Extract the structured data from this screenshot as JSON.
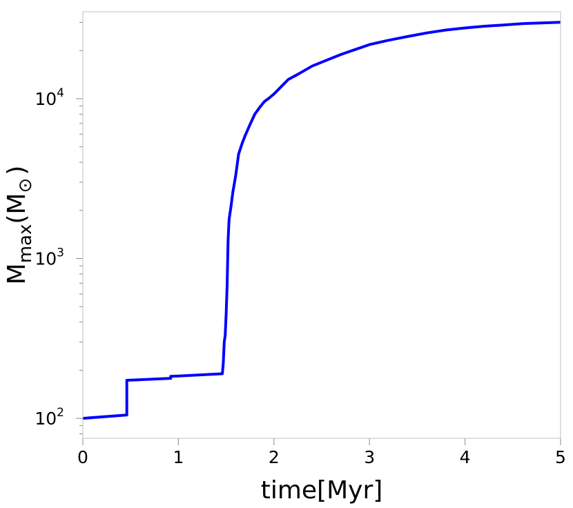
{
  "chart_data": {
    "type": "line",
    "title": "",
    "xlabel": "time[Myr]",
    "ylabel": {
      "main": "M",
      "sub": "max",
      "open": "(M",
      "sun_sub": "⊙",
      "close": ")"
    },
    "xlim": [
      0,
      5
    ],
    "ylim": [
      75,
      35000
    ],
    "yscale": "log",
    "grid": false,
    "legend": "none",
    "x_ticks": [
      {
        "value": 0,
        "label": "0"
      },
      {
        "value": 1,
        "label": "1"
      },
      {
        "value": 2,
        "label": "2"
      },
      {
        "value": 3,
        "label": "3"
      },
      {
        "value": 4,
        "label": "4"
      },
      {
        "value": 5,
        "label": "5"
      }
    ],
    "y_ticks": [
      {
        "value": 100,
        "base": "10",
        "exp": "2"
      },
      {
        "value": 1000,
        "base": "10",
        "exp": "3"
      },
      {
        "value": 10000,
        "base": "10",
        "exp": "4"
      }
    ],
    "series": [
      {
        "color": "#0000ff",
        "x": [
          0,
          0.46,
          0.46,
          0.92,
          0.92,
          1.46,
          1.47,
          1.48,
          1.49,
          1.5,
          1.51,
          1.52,
          1.53,
          1.55,
          1.57,
          1.6,
          1.63,
          1.67,
          1.7,
          1.75,
          1.8,
          1.85,
          1.9,
          1.95,
          2.0,
          2.1,
          2.15,
          2.25,
          2.4,
          2.55,
          2.7,
          2.85,
          3.0,
          3.2,
          3.4,
          3.6,
          3.8,
          4.0,
          4.2,
          4.4,
          4.6,
          4.8,
          5.0
        ],
        "y": [
          100,
          105,
          173,
          178,
          183,
          190,
          220,
          300,
          330,
          450,
          680,
          1300,
          1750,
          2100,
          2600,
          3300,
          4500,
          5300,
          5900,
          6900,
          8000,
          8800,
          9600,
          10100,
          10700,
          12300,
          13200,
          14200,
          16000,
          17400,
          18900,
          20300,
          21800,
          23200,
          24500,
          25800,
          26900,
          27700,
          28400,
          28900,
          29500,
          29800,
          30100
        ]
      }
    ]
  }
}
